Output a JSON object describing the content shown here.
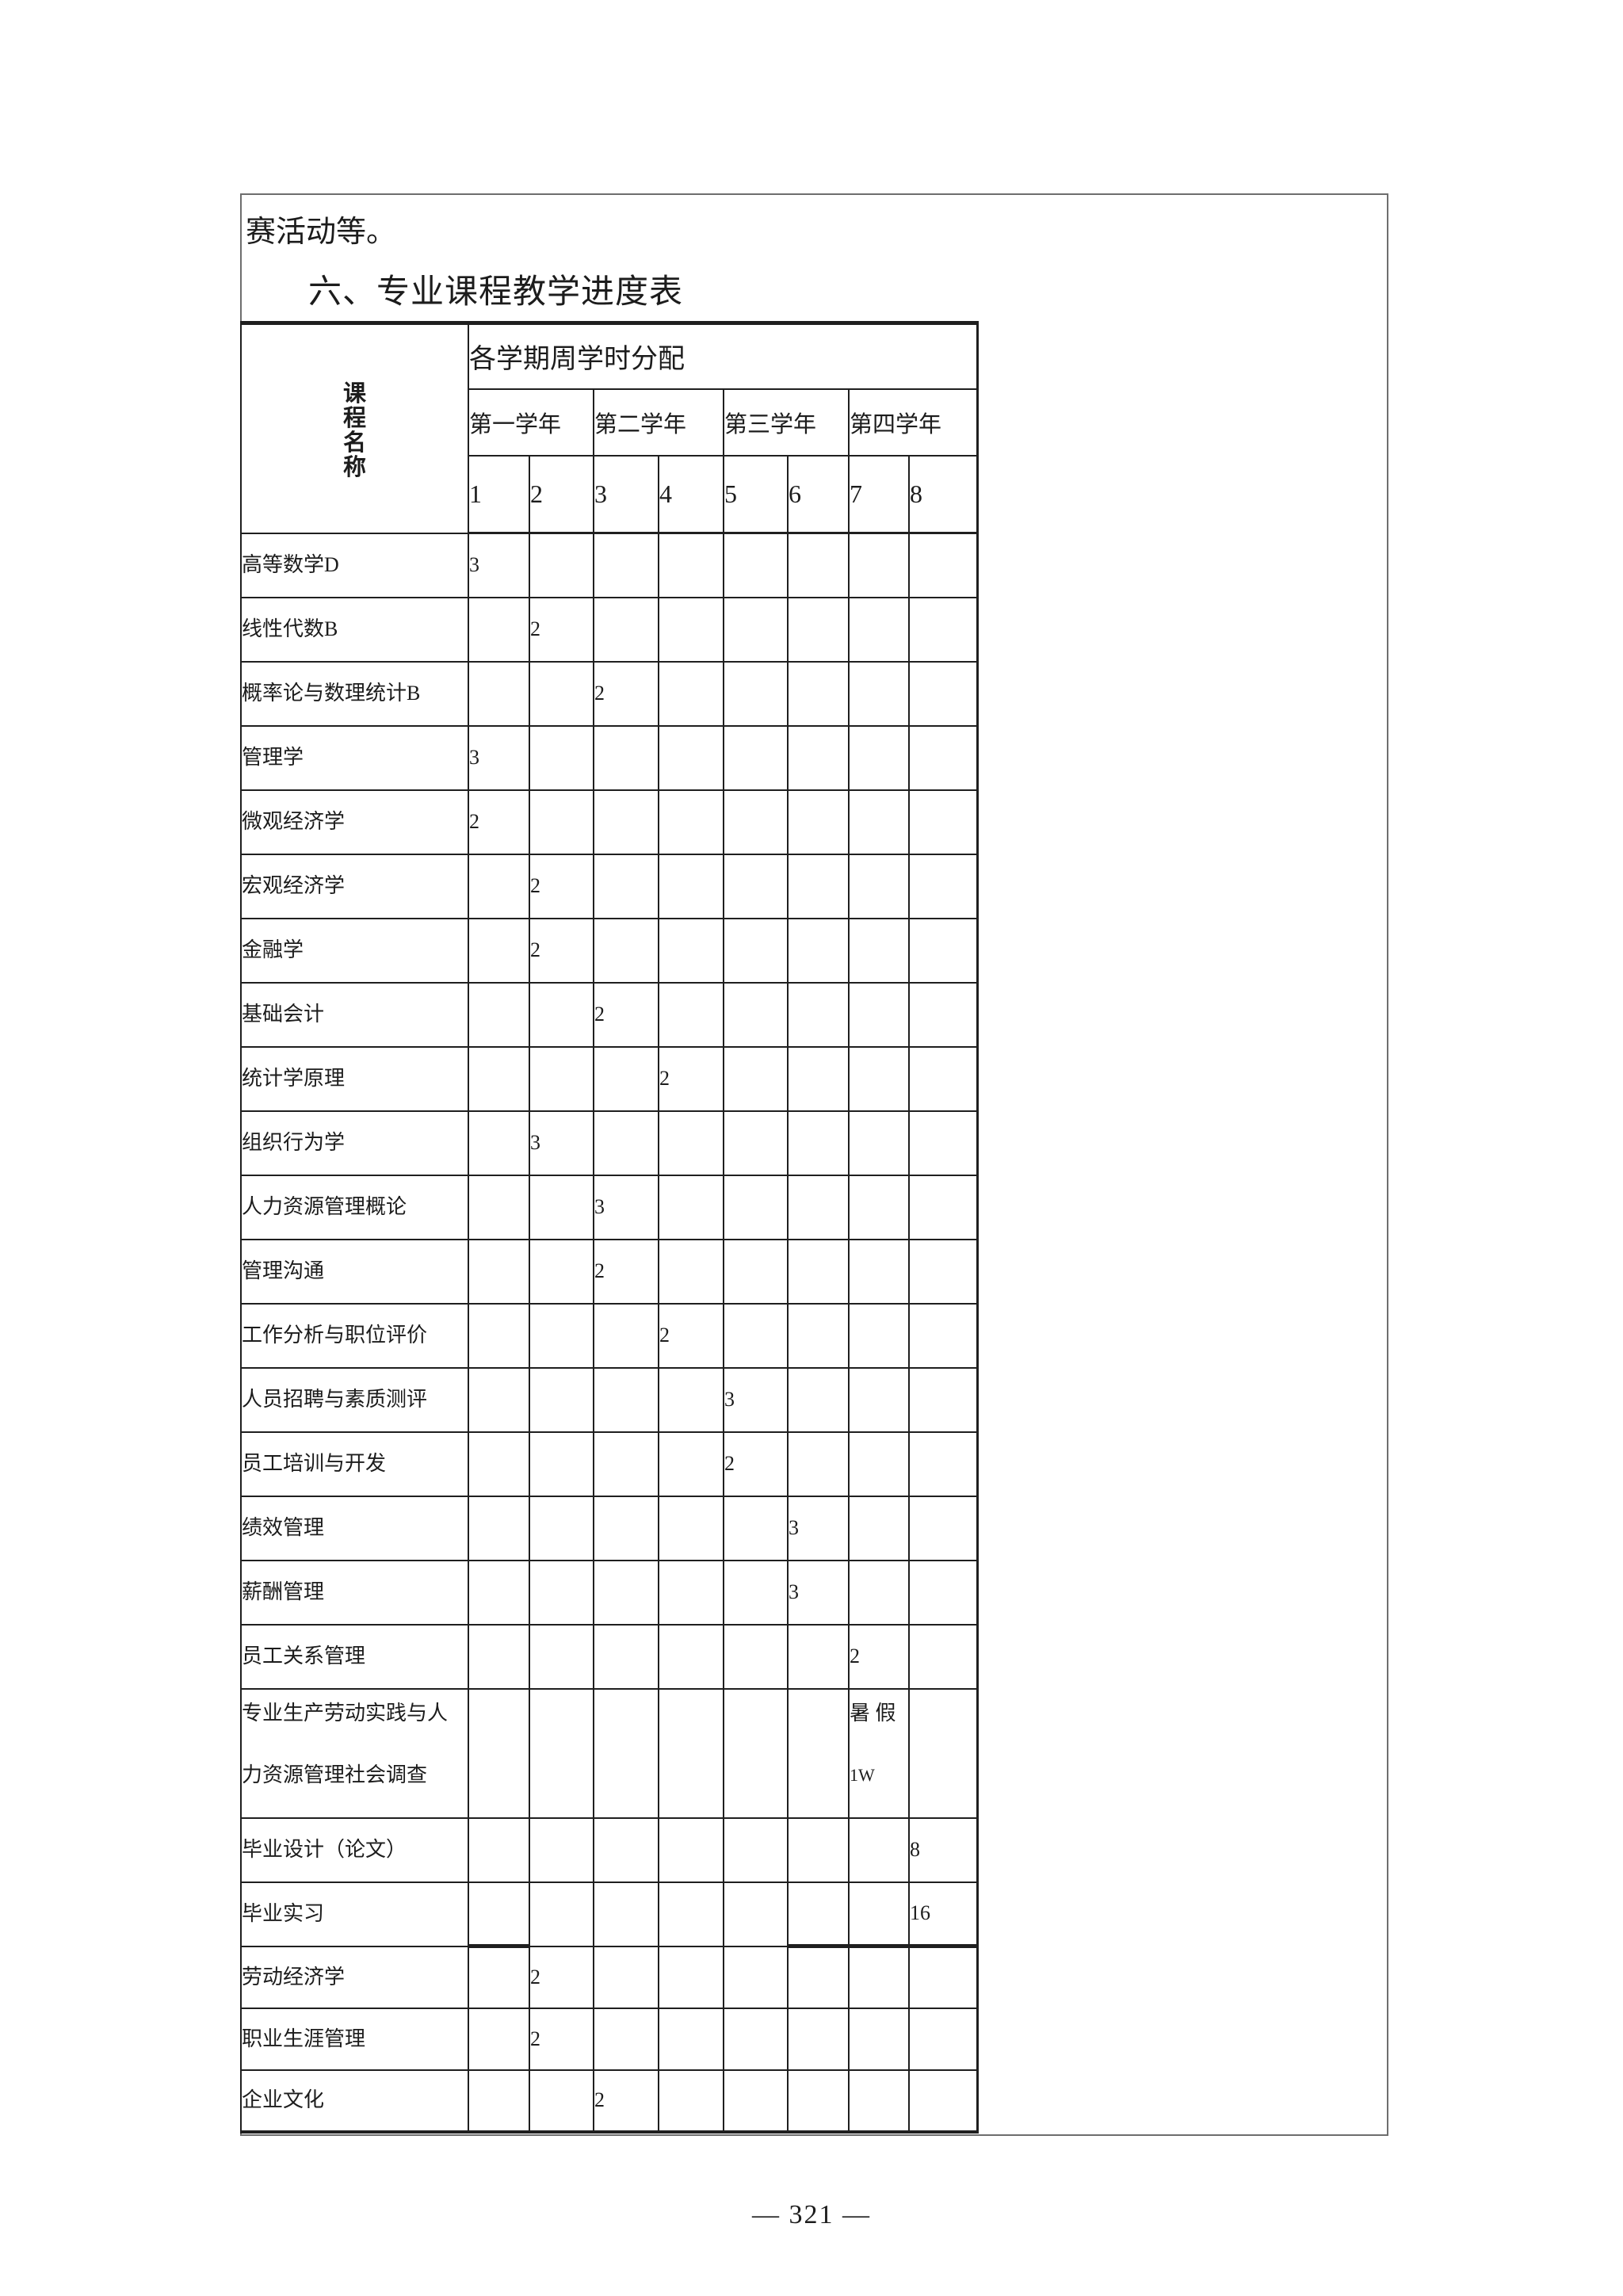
{
  "page": {
    "intro_text": "赛活动等。",
    "section_heading": "六、专业课程教学进度表",
    "page_number": "— 321 —"
  },
  "table": {
    "corner_header": "课程名称",
    "allocation_header": "各学期周学时分配",
    "year_headers": [
      "第一学年",
      "第二学年",
      "第三学年",
      "第四学年"
    ],
    "semester_headers": [
      "1",
      "2",
      "3",
      "4",
      "5",
      "6",
      "7",
      "8"
    ],
    "courses": [
      {
        "name": "高等数学D",
        "semester": 1,
        "hours": "3"
      },
      {
        "name": "线性代数B",
        "semester": 2,
        "hours": "2"
      },
      {
        "name": "概率论与数理统计B",
        "semester": 3,
        "hours": "2"
      },
      {
        "name": "管理学",
        "semester": 1,
        "hours": "3"
      },
      {
        "name": "微观经济学",
        "semester": 1,
        "hours": "2"
      },
      {
        "name": "宏观经济学",
        "semester": 2,
        "hours": "2"
      },
      {
        "name": "金融学",
        "semester": 2,
        "hours": "2"
      },
      {
        "name": "基础会计",
        "semester": 3,
        "hours": "2"
      },
      {
        "name": "统计学原理",
        "semester": 4,
        "hours": "2"
      },
      {
        "name": "组织行为学",
        "semester": 2,
        "hours": "3"
      },
      {
        "name": "人力资源管理概论",
        "semester": 3,
        "hours": "3"
      },
      {
        "name": "管理沟通",
        "semester": 3,
        "hours": "2"
      },
      {
        "name": "工作分析与职位评价",
        "semester": 4,
        "hours": "2"
      },
      {
        "name": "人员招聘与素质测评",
        "semester": 5,
        "hours": "3"
      },
      {
        "name": "员工培训与开发",
        "semester": 5,
        "hours": "2"
      },
      {
        "name": "绩效管理",
        "semester": 6,
        "hours": "3"
      },
      {
        "name": "薪酬管理",
        "semester": 6,
        "hours": "3"
      },
      {
        "name": "员工关系管理",
        "semester": 7,
        "hours": "2"
      },
      {
        "name_lines": [
          "专业生产劳动实践与人",
          "力资源管理社会调查"
        ],
        "semester": 7,
        "hours_lines": [
          "暑 假",
          "1W"
        ],
        "tall": true
      },
      {
        "name": "毕业设计（论文）",
        "semester": 8,
        "hours": "8"
      },
      {
        "name": "毕业实习",
        "semester": 8,
        "hours": "16",
        "split_after": true
      },
      {
        "name": "劳动经济学",
        "semester": 2,
        "hours": "2"
      },
      {
        "name": "职业生涯管理",
        "semester": 2,
        "hours": "2"
      },
      {
        "name": "企业文化",
        "semester": 3,
        "hours": "2"
      }
    ]
  }
}
